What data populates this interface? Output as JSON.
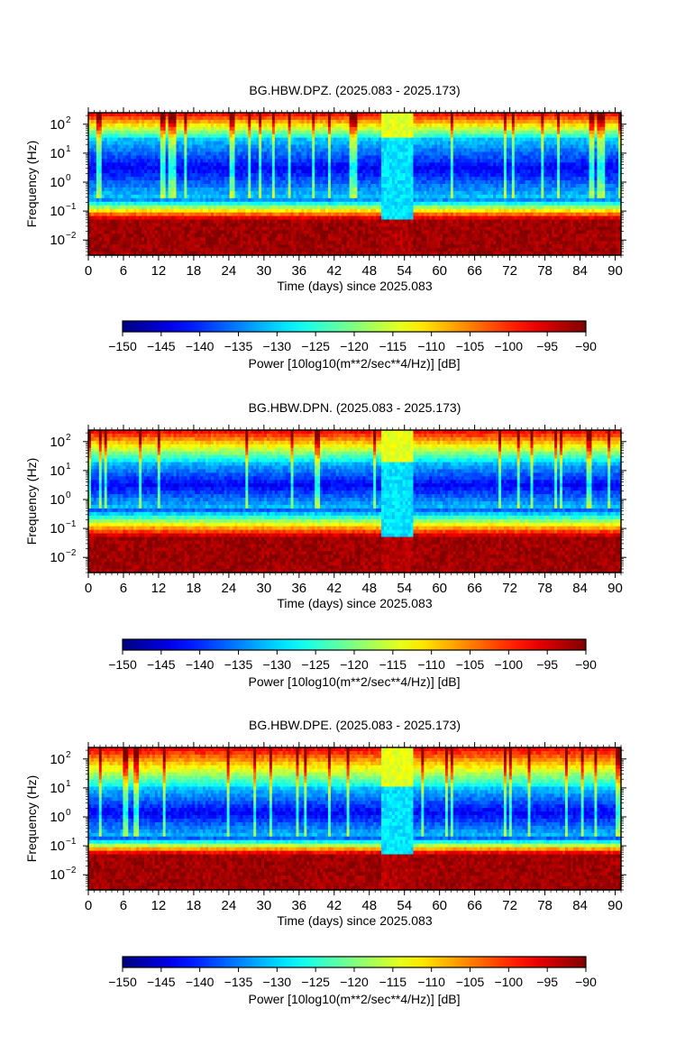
{
  "chart_data": [
    {
      "type": "heatmap",
      "title": "BG.HBW.DPZ. (2025.083 - 2025.173)",
      "xlabel": "Time (days) since 2025.083",
      "ylabel": "Frequency (Hz)",
      "x_ticks": [
        "0",
        "6",
        "12",
        "18",
        "24",
        "30",
        "36",
        "42",
        "48",
        "54",
        "60",
        "66",
        "72",
        "78",
        "84",
        "90"
      ],
      "xlim": [
        0,
        91
      ],
      "y_scale": "log",
      "ylim": [
        0.003,
        250
      ],
      "y_ticks": [
        {
          "base": "10",
          "exp": "2",
          "value": 100
        },
        {
          "base": "10",
          "exp": "1",
          "value": 10
        },
        {
          "base": "10",
          "exp": "0",
          "value": 1
        },
        {
          "base": "10",
          "exp": "−1",
          "value": 0.1
        },
        {
          "base": "10",
          "exp": "−2",
          "value": 0.01
        }
      ],
      "low_noise_band_hz": [
        0.3,
        30
      ],
      "data_gap_days": [
        50,
        55.5
      ],
      "colorbar": {
        "label": "Power [10log10(m**2/sec**4/Hz)] [dB]",
        "range": [
          -150,
          -90
        ],
        "ticks": [
          "−150",
          "−145",
          "−140",
          "−135",
          "−130",
          "−125",
          "−120",
          "−115",
          "−110",
          "−105",
          "−100",
          "−95",
          "−90"
        ]
      }
    },
    {
      "type": "heatmap",
      "title": "BG.HBW.DPN. (2025.083 - 2025.173)",
      "xlabel": "Time (days) since 2025.083",
      "ylabel": "Frequency (Hz)",
      "x_ticks": [
        "0",
        "6",
        "12",
        "18",
        "24",
        "30",
        "36",
        "42",
        "48",
        "54",
        "60",
        "66",
        "72",
        "78",
        "84",
        "90"
      ],
      "xlim": [
        0,
        91
      ],
      "y_scale": "log",
      "ylim": [
        0.003,
        250
      ],
      "y_ticks": [
        {
          "base": "10",
          "exp": "2",
          "value": 100
        },
        {
          "base": "10",
          "exp": "1",
          "value": 10
        },
        {
          "base": "10",
          "exp": "0",
          "value": 1
        },
        {
          "base": "10",
          "exp": "−1",
          "value": 0.1
        },
        {
          "base": "10",
          "exp": "−2",
          "value": 0.01
        }
      ],
      "low_noise_band_hz": [
        0.5,
        20
      ],
      "data_gap_days": [
        50,
        55.5
      ],
      "colorbar": {
        "label": "Power [10log10(m**2/sec**4/Hz)] [dB]",
        "range": [
          -150,
          -90
        ],
        "ticks": [
          "−150",
          "−145",
          "−140",
          "−135",
          "−130",
          "−125",
          "−120",
          "−115",
          "−110",
          "−105",
          "−100",
          "−95",
          "−90"
        ]
      }
    },
    {
      "type": "heatmap",
      "title": "BG.HBW.DPE. (2025.083 - 2025.173)",
      "xlabel": "Time (days) since 2025.083",
      "ylabel": "Frequency (Hz)",
      "x_ticks": [
        "0",
        "6",
        "12",
        "18",
        "24",
        "30",
        "36",
        "42",
        "48",
        "54",
        "60",
        "66",
        "72",
        "78",
        "84",
        "90"
      ],
      "xlim": [
        0,
        91
      ],
      "y_scale": "log",
      "ylim": [
        0.003,
        250
      ],
      "y_ticks": [
        {
          "base": "10",
          "exp": "2",
          "value": 100
        },
        {
          "base": "10",
          "exp": "1",
          "value": 10
        },
        {
          "base": "10",
          "exp": "0",
          "value": 1
        },
        {
          "base": "10",
          "exp": "−1",
          "value": 0.1
        },
        {
          "base": "10",
          "exp": "−2",
          "value": 0.01
        }
      ],
      "low_noise_band_hz": [
        0.2,
        10
      ],
      "data_gap_days": [
        50,
        55.5
      ],
      "colorbar": {
        "label": "Power [10log10(m**2/sec**4/Hz)] [dB]",
        "range": [
          -150,
          -90
        ],
        "ticks": [
          "−150",
          "−145",
          "−140",
          "−135",
          "−130",
          "−125",
          "−120",
          "−115",
          "−110",
          "−105",
          "−100",
          "−95",
          "−90"
        ]
      }
    }
  ]
}
